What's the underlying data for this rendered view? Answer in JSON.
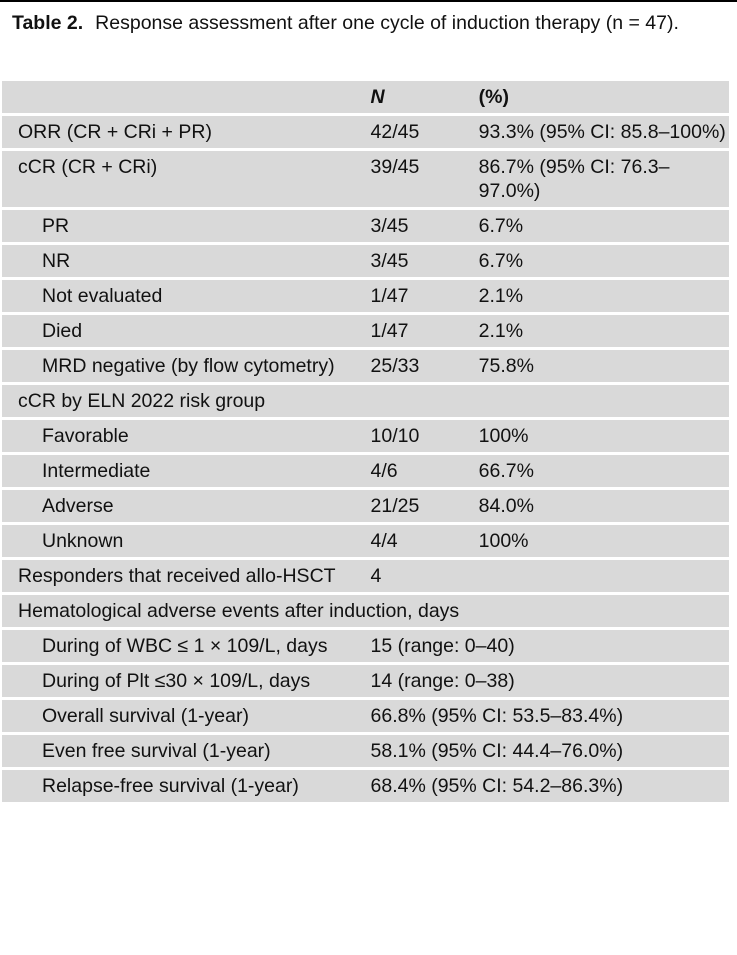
{
  "caption": {
    "label": "Table 2.",
    "text": "Response assessment after one cycle of induction therapy (n = 47)."
  },
  "table": {
    "header": {
      "col1": "",
      "col2": "N",
      "col3": "(%)"
    },
    "rows": [
      {
        "type": "normal",
        "label": "ORR (CR + CRi + PR)",
        "n": "42/45",
        "pct": "93.3% (95% CI: 85.8–100%)"
      },
      {
        "type": "normal",
        "label": "cCR (CR + CRi)",
        "n": "39/45",
        "pct": "86.7% (95% CI: 76.3–97.0%)"
      },
      {
        "type": "indent",
        "label": "PR",
        "n": "3/45",
        "pct": "6.7%"
      },
      {
        "type": "indent",
        "label": "NR",
        "n": "3/45",
        "pct": "6.7%"
      },
      {
        "type": "indent",
        "label": "Not evaluated",
        "n": "1/47",
        "pct": "2.1%"
      },
      {
        "type": "indent",
        "label": "Died",
        "n": "1/47",
        "pct": "2.1%"
      },
      {
        "type": "indent",
        "label": "MRD negative (by flow cytometry)",
        "n": "25/33",
        "pct": "75.8%"
      },
      {
        "type": "normal",
        "label": "cCR by ELN 2022 risk group",
        "n": "",
        "pct": ""
      },
      {
        "type": "indent",
        "label": "Favorable",
        "n": "10/10",
        "pct": "100%"
      },
      {
        "type": "indent",
        "label": "Intermediate",
        "n": "4/6",
        "pct": "66.7%"
      },
      {
        "type": "indent",
        "label": "Adverse",
        "n": "21/25",
        "pct": "84.0%"
      },
      {
        "type": "indent",
        "label": "Unknown",
        "n": "4/4",
        "pct": "100%"
      },
      {
        "type": "normal",
        "label": "Responders that received allo-HSCT",
        "n": "4",
        "pct": ""
      },
      {
        "type": "span",
        "label": "Hematological adverse events after induction, days"
      },
      {
        "type": "indent-wide",
        "label": "During of WBC ≤ 1 × 109/L, days",
        "value": "15 (range: 0–40)"
      },
      {
        "type": "indent-wide",
        "label": "During of Plt ≤30 × 109/L, days",
        "value": "14 (range: 0–38)"
      },
      {
        "type": "indent-wide",
        "label": "Overall survival (1-year)",
        "value": "66.8% (95% CI: 53.5–83.4%)"
      },
      {
        "type": "indent-wide",
        "label": "Even free survival (1-year)",
        "value": "58.1% (95% CI: 44.4–76.0%)"
      },
      {
        "type": "indent-wide",
        "label": "Relapse-free survival (1-year)",
        "value": "68.4% (95% CI: 54.2–86.3%)"
      }
    ]
  }
}
